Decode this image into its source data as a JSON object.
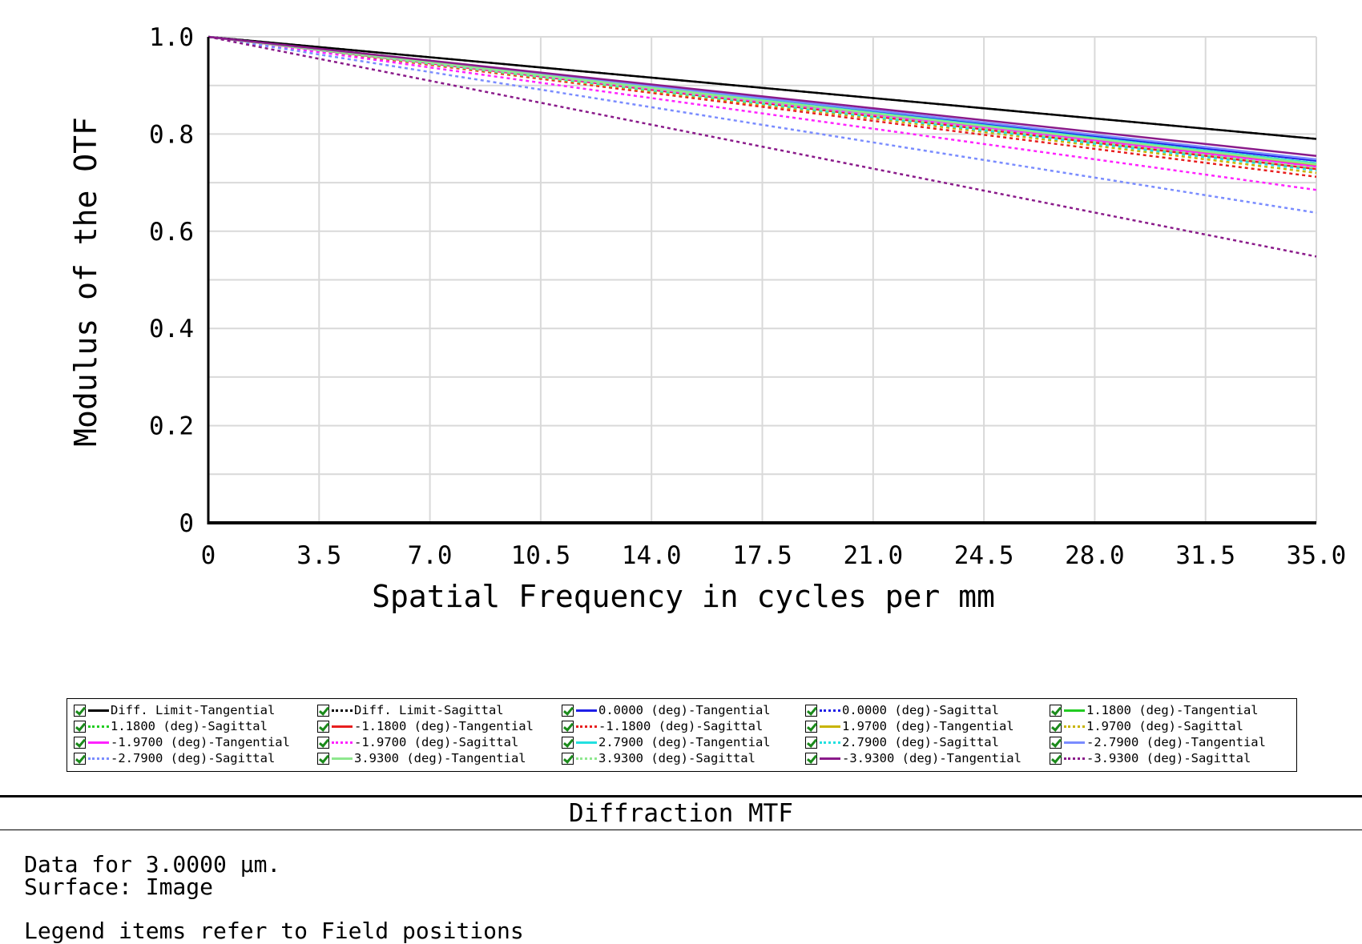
{
  "panel_title": "Diffraction MTF",
  "info": {
    "line1": "Data for 3.0000 µm.",
    "line2": "Surface: Image",
    "line3": "Legend items refer to Field positions"
  },
  "legend": {
    "items": [
      {
        "label": "Diff. Limit-Tangential",
        "color": "#000000",
        "style": "solid",
        "checked": true
      },
      {
        "label": "Diff. Limit-Sagittal",
        "color": "#000000",
        "style": "dotted",
        "checked": true
      },
      {
        "label": "0.0000 (deg)-Tangential",
        "color": "#1f1fe8",
        "style": "solid",
        "checked": true
      },
      {
        "label": "0.0000 (deg)-Sagittal",
        "color": "#1f1fe8",
        "style": "dotted",
        "checked": true
      },
      {
        "label": "1.1800 (deg)-Tangential",
        "color": "#22cc22",
        "style": "solid",
        "checked": true
      },
      {
        "label": "1.1800 (deg)-Sagittal",
        "color": "#22cc22",
        "style": "dotted",
        "checked": true
      },
      {
        "label": "-1.1800 (deg)-Tangential",
        "color": "#e81f1f",
        "style": "solid",
        "checked": true
      },
      {
        "label": "-1.1800 (deg)-Sagittal",
        "color": "#e81f1f",
        "style": "dotted",
        "checked": true
      },
      {
        "label": "1.9700 (deg)-Tangential",
        "color": "#c8b400",
        "style": "solid",
        "checked": true
      },
      {
        "label": "1.9700 (deg)-Sagittal",
        "color": "#c8b400",
        "style": "dotted",
        "checked": true
      },
      {
        "label": "-1.9700 (deg)-Tangential",
        "color": "#ff22ff",
        "style": "solid",
        "checked": true
      },
      {
        "label": "-1.9700 (deg)-Sagittal",
        "color": "#ff22ff",
        "style": "dotted",
        "checked": true
      },
      {
        "label": "2.7900 (deg)-Tangential",
        "color": "#22e0e0",
        "style": "solid",
        "checked": true
      },
      {
        "label": "2.7900 (deg)-Sagittal",
        "color": "#22e0e0",
        "style": "dotted",
        "checked": true
      },
      {
        "label": "-2.7900 (deg)-Tangential",
        "color": "#7a8cff",
        "style": "solid",
        "checked": true
      },
      {
        "label": "-2.7900 (deg)-Sagittal",
        "color": "#7a8cff",
        "style": "dotted",
        "checked": true
      },
      {
        "label": "3.9300 (deg)-Tangential",
        "color": "#8ee88e",
        "style": "solid",
        "checked": true
      },
      {
        "label": "3.9300 (deg)-Sagittal",
        "color": "#8ee88e",
        "style": "dotted",
        "checked": true
      },
      {
        "label": "-3.9300 (deg)-Tangential",
        "color": "#8a1a8a",
        "style": "solid",
        "checked": true
      },
      {
        "label": "-3.9300 (deg)-Sagittal",
        "color": "#8a1a8a",
        "style": "dotted",
        "checked": true
      }
    ]
  },
  "chart_data": {
    "type": "line",
    "title": "",
    "xlabel": "Spatial Frequency in cycles per mm",
    "ylabel": "Modulus of the OTF",
    "xlim": [
      0,
      35
    ],
    "ylim": [
      0,
      1
    ],
    "x_ticks": [
      "0",
      "3.5",
      "7.0",
      "10.5",
      "14.0",
      "17.5",
      "21.0",
      "24.5",
      "28.0",
      "31.5",
      "35.0"
    ],
    "y_ticks": [
      "0",
      "0.2",
      "0.4",
      "0.6",
      "0.8",
      "1.0"
    ],
    "grid": true,
    "legend_position": "bottom",
    "x": [
      0,
      35
    ],
    "series": [
      {
        "name": "Diff. Limit-Tangential",
        "color": "#000000",
        "style": "solid",
        "values": [
          1.0,
          0.79
        ]
      },
      {
        "name": "Diff. Limit-Sagittal",
        "color": "#000000",
        "style": "dotted",
        "values": [
          1.0,
          0.79
        ]
      },
      {
        "name": "0.0000 (deg)-Tangential",
        "color": "#1f1fe8",
        "style": "solid",
        "values": [
          1.0,
          0.745
        ]
      },
      {
        "name": "0.0000 (deg)-Sagittal",
        "color": "#1f1fe8",
        "style": "dotted",
        "values": [
          1.0,
          0.745
        ]
      },
      {
        "name": "1.1800 (deg)-Tangential",
        "color": "#22cc22",
        "style": "solid",
        "values": [
          1.0,
          0.74
        ]
      },
      {
        "name": "1.1800 (deg)-Sagittal",
        "color": "#22cc22",
        "style": "dotted",
        "values": [
          1.0,
          0.735
        ]
      },
      {
        "name": "-1.1800 (deg)-Tangential",
        "color": "#e81f1f",
        "style": "solid",
        "values": [
          1.0,
          0.728
        ]
      },
      {
        "name": "-1.1800 (deg)-Sagittal",
        "color": "#e81f1f",
        "style": "dotted",
        "values": [
          1.0,
          0.712
        ]
      },
      {
        "name": "1.9700 (deg)-Tangential",
        "color": "#c8b400",
        "style": "solid",
        "values": [
          1.0,
          0.735
        ]
      },
      {
        "name": "1.9700 (deg)-Sagittal",
        "color": "#c8b400",
        "style": "dotted",
        "values": [
          1.0,
          0.72
        ]
      },
      {
        "name": "-1.9700 (deg)-Tangential",
        "color": "#ff22ff",
        "style": "solid",
        "values": [
          1.0,
          0.733
        ]
      },
      {
        "name": "-1.9700 (deg)-Sagittal",
        "color": "#ff22ff",
        "style": "dotted",
        "values": [
          1.0,
          0.685
        ]
      },
      {
        "name": "2.7900 (deg)-Tangential",
        "color": "#22e0e0",
        "style": "solid",
        "values": [
          1.0,
          0.74
        ]
      },
      {
        "name": "2.7900 (deg)-Sagittal",
        "color": "#22e0e0",
        "style": "dotted",
        "values": [
          1.0,
          0.725
        ]
      },
      {
        "name": "-2.7900 (deg)-Tangential",
        "color": "#7a8cff",
        "style": "solid",
        "values": [
          1.0,
          0.748
        ]
      },
      {
        "name": "-2.7900 (deg)-Sagittal",
        "color": "#7a8cff",
        "style": "dotted",
        "values": [
          1.0,
          0.638
        ]
      },
      {
        "name": "3.9300 (deg)-Tangential",
        "color": "#8ee88e",
        "style": "solid",
        "values": [
          1.0,
          0.738
        ]
      },
      {
        "name": "3.9300 (deg)-Sagittal",
        "color": "#8ee88e",
        "style": "dotted",
        "values": [
          1.0,
          0.73
        ]
      },
      {
        "name": "-3.9300 (deg)-Tangential",
        "color": "#8a1a8a",
        "style": "solid",
        "values": [
          1.0,
          0.755
        ]
      },
      {
        "name": "-3.9300 (deg)-Sagittal",
        "color": "#8a1a8a",
        "style": "dotted",
        "values": [
          1.0,
          0.548
        ]
      }
    ]
  }
}
